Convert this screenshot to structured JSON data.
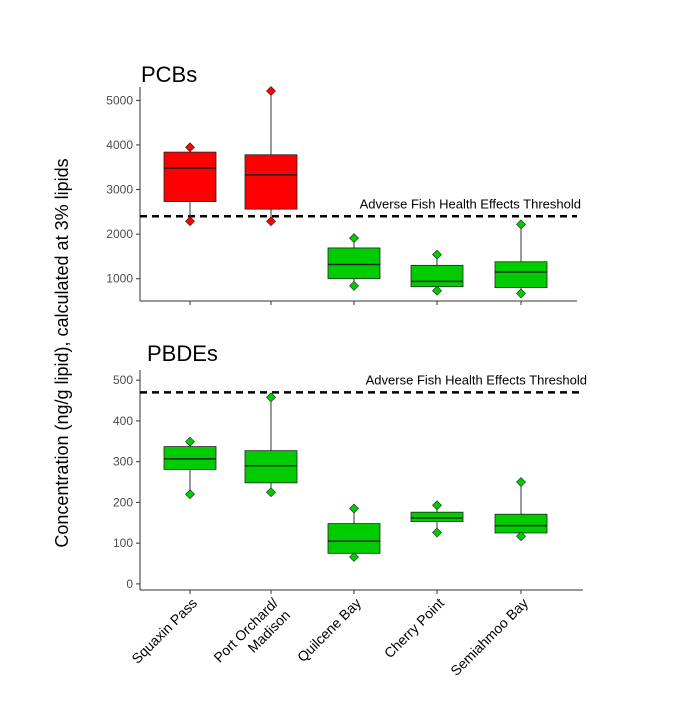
{
  "chart_data": [
    {
      "type": "boxplot",
      "title": "PCBs",
      "ylim": [
        500,
        5300
      ],
      "yticks": [
        1000,
        2000,
        3000,
        4000,
        5000
      ],
      "threshold": {
        "value": 2400,
        "label": "Adverse Fish  Health Effects Threshold"
      },
      "categories": [
        "Squaxin Pass",
        "Port Orchard/ Madison",
        "Quilcene Bay",
        "Cherry Point",
        "Semiahmoo Bay"
      ],
      "boxes": [
        {
          "category": "Squaxin Pass",
          "min": 2290,
          "q1": 2730,
          "median": 3480,
          "q3": 3840,
          "max": 3950,
          "color": "#ff0000"
        },
        {
          "category": "Port Orchard/ Madison",
          "min": 2290,
          "q1": 2560,
          "median": 3330,
          "q3": 3780,
          "max": 5210,
          "color": "#ff0000"
        },
        {
          "category": "Quilcene Bay",
          "min": 840,
          "q1": 1000,
          "median": 1320,
          "q3": 1690,
          "max": 1910,
          "color": "#00cc00"
        },
        {
          "category": "Cherry Point",
          "min": 730,
          "q1": 820,
          "median": 940,
          "q3": 1300,
          "max": 1540,
          "color": "#00cc00"
        },
        {
          "category": "Semiahmoo Bay",
          "min": 670,
          "q1": 800,
          "median": 1150,
          "q3": 1380,
          "max": 2220,
          "color": "#00cc00"
        }
      ]
    },
    {
      "type": "boxplot",
      "title": "PBDEs",
      "ylim": [
        -15,
        525
      ],
      "yticks": [
        0,
        100,
        200,
        300,
        400,
        500
      ],
      "threshold": {
        "value": 470,
        "label": "Adverse Fish  Health Effects Threshold"
      },
      "categories": [
        "Squaxin Pass",
        "Port Orchard/ Madison",
        "Quilcene Bay",
        "Cherry Point",
        "Semiahmoo Bay"
      ],
      "boxes": [
        {
          "category": "Squaxin Pass",
          "min": 220,
          "q1": 281,
          "median": 307,
          "q3": 337,
          "max": 349,
          "color": "#00cc00"
        },
        {
          "category": "Port Orchard/ Madison",
          "min": 225,
          "q1": 248,
          "median": 290,
          "q3": 327,
          "max": 458,
          "color": "#00cc00"
        },
        {
          "category": "Quilcene Bay",
          "min": 66,
          "q1": 75,
          "median": 105,
          "q3": 148,
          "max": 185,
          "color": "#00cc00"
        },
        {
          "category": "Cherry Point",
          "min": 126,
          "q1": 153,
          "median": 162,
          "q3": 176,
          "max": 193,
          "color": "#00cc00"
        },
        {
          "category": "Semiahmoo Bay",
          "min": 117,
          "q1": 125,
          "median": 143,
          "q3": 171,
          "max": 250,
          "color": "#00cc00"
        }
      ]
    }
  ],
  "ylabel": "Concentration (ng/g lipid), calculated at 3% lipids"
}
